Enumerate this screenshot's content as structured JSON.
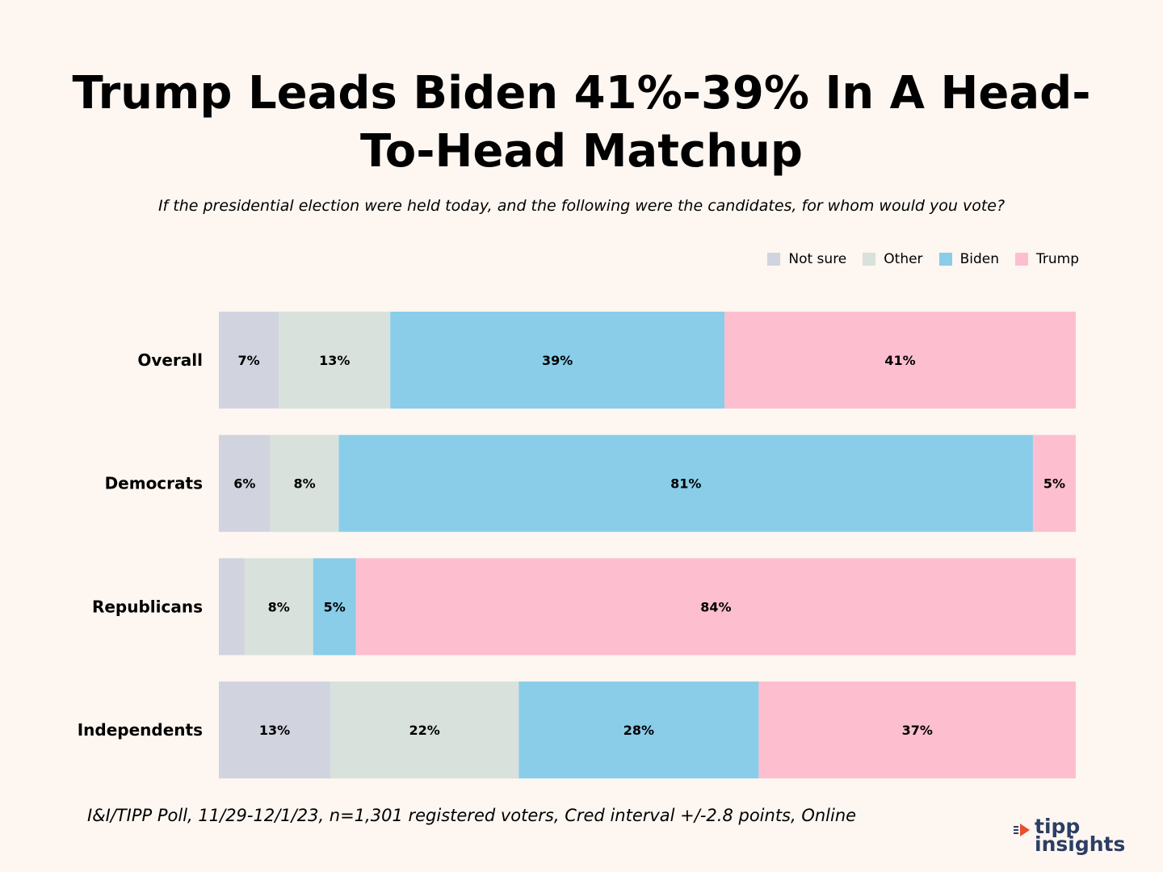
{
  "chart_data": {
    "type": "bar",
    "orientation": "horizontal",
    "stacked": true,
    "title": "Trump Leads Biden 41%-39% In A Head-To-Head Matchup",
    "subtitle": "If the presidential election were held today, and the following were the candidates, for whom would you vote?",
    "categories": [
      "Overall",
      "Democrats",
      "Republicans",
      "Independents"
    ],
    "series": [
      {
        "name": "Not sure",
        "color": "#d1d3df",
        "values": [
          7,
          6,
          3,
          13
        ],
        "labels": [
          "7%",
          "6%",
          "",
          "13%"
        ]
      },
      {
        "name": "Other",
        "color": "#d8e1dc",
        "values": [
          13,
          8,
          8,
          22
        ],
        "labels": [
          "13%",
          "8%",
          "8%",
          "22%"
        ]
      },
      {
        "name": "Biden",
        "color": "#89cde9",
        "values": [
          39,
          81,
          5,
          28
        ],
        "labels": [
          "39%",
          "81%",
          "5%",
          "28%"
        ]
      },
      {
        "name": "Trump",
        "color": "#fdbfd0",
        "values": [
          41,
          5,
          84,
          37
        ],
        "labels": [
          "41%",
          "5%",
          "84%",
          "37%"
        ]
      }
    ],
    "xlim": [
      0,
      100
    ],
    "legend_position": "top-right",
    "grid": false
  },
  "footnote": "I&I/TIPP Poll, 11/29-12/1/23, n=1,301 registered voters, Cred interval +/-2.8 points, Online",
  "logo": {
    "line1": "tipp",
    "line2": "insights",
    "accent_color": "#e94e35",
    "text_color": "#2c3e63"
  }
}
